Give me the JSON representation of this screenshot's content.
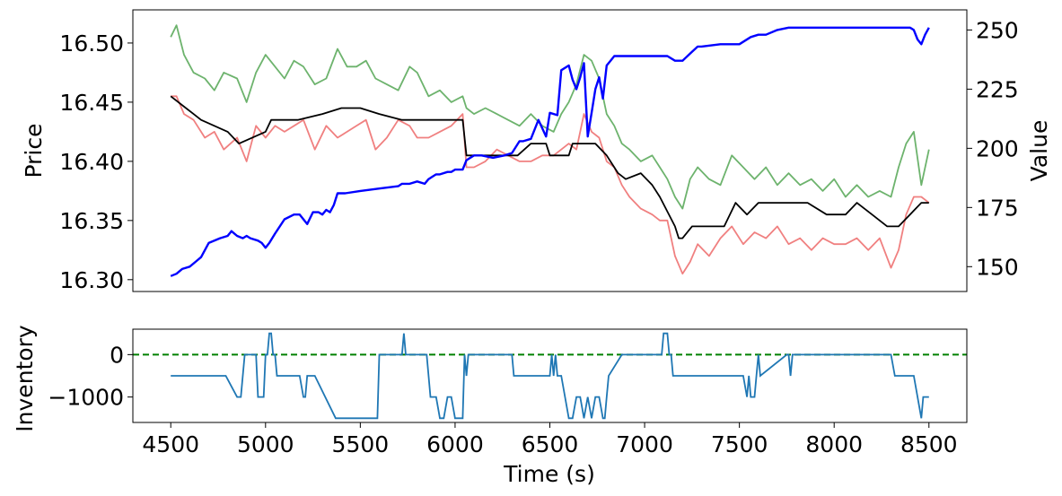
{
  "chart_data": [
    {
      "type": "line",
      "title": "",
      "xlabel": "",
      "ylabel": "Price",
      "y2label": "Value",
      "xlim": [
        4300,
        8700
      ],
      "ylim": [
        16.29,
        16.528
      ],
      "y2lim": [
        139.5,
        258.5
      ],
      "yticks": [
        16.3,
        16.35,
        16.4,
        16.45,
        16.5
      ],
      "y2ticks": [
        150,
        175,
        200,
        225,
        250
      ],
      "grid": false,
      "legend": "none",
      "series": [
        {
          "color": "#6db36d",
          "axis": "left",
          "role": "ask price",
          "x": [
            4500,
            4530,
            4570,
            4620,
            4680,
            4730,
            4780,
            4850,
            4900,
            4950,
            5000,
            5050,
            5100,
            5150,
            5200,
            5260,
            5320,
            5380,
            5430,
            5480,
            5530,
            5580,
            5640,
            5700,
            5760,
            5800,
            5860,
            5920,
            5980,
            6040,
            6060,
            6100,
            6160,
            6220,
            6280,
            6340,
            6400,
            6460,
            6520,
            6560,
            6600,
            6640,
            6680,
            6720,
            6760,
            6800,
            6840,
            6880,
            6920,
            6980,
            7040,
            7080,
            7120,
            7160,
            7200,
            7240,
            7280,
            7340,
            7400,
            7460,
            7520,
            7580,
            7640,
            7700,
            7760,
            7820,
            7880,
            7940,
            8000,
            8060,
            8120,
            8180,
            8240,
            8300,
            8340,
            8380,
            8420,
            8460,
            8500
          ],
          "values": [
            16.505,
            16.515,
            16.49,
            16.475,
            16.47,
            16.46,
            16.475,
            16.47,
            16.45,
            16.475,
            16.49,
            16.48,
            16.47,
            16.485,
            16.48,
            16.465,
            16.47,
            16.495,
            16.48,
            16.48,
            16.485,
            16.47,
            16.465,
            16.46,
            16.48,
            16.475,
            16.455,
            16.46,
            16.45,
            16.455,
            16.445,
            16.44,
            16.445,
            16.44,
            16.435,
            16.43,
            16.44,
            16.43,
            16.425,
            16.44,
            16.45,
            16.465,
            16.49,
            16.485,
            16.47,
            16.44,
            16.43,
            16.415,
            16.41,
            16.4,
            16.405,
            16.395,
            16.385,
            16.37,
            16.36,
            16.385,
            16.395,
            16.385,
            16.38,
            16.405,
            16.395,
            16.385,
            16.395,
            16.38,
            16.39,
            16.38,
            16.385,
            16.375,
            16.385,
            16.37,
            16.38,
            16.37,
            16.375,
            16.37,
            16.395,
            16.415,
            16.425,
            16.38,
            16.41
          ]
        },
        {
          "color": "#f08080",
          "axis": "left",
          "role": "bid price",
          "x": [
            4500,
            4530,
            4570,
            4620,
            4680,
            4730,
            4780,
            4850,
            4900,
            4950,
            5000,
            5050,
            5100,
            5150,
            5200,
            5260,
            5320,
            5380,
            5430,
            5480,
            5530,
            5580,
            5640,
            5700,
            5760,
            5800,
            5860,
            5920,
            5980,
            6040,
            6060,
            6100,
            6160,
            6220,
            6280,
            6340,
            6400,
            6460,
            6520,
            6560,
            6600,
            6640,
            6680,
            6720,
            6760,
            6800,
            6840,
            6880,
            6920,
            6980,
            7040,
            7080,
            7120,
            7160,
            7200,
            7240,
            7280,
            7340,
            7400,
            7460,
            7520,
            7580,
            7640,
            7700,
            7760,
            7820,
            7880,
            7940,
            8000,
            8060,
            8120,
            8180,
            8240,
            8300,
            8340,
            8380,
            8420,
            8460,
            8500
          ],
          "values": [
            16.455,
            16.455,
            16.44,
            16.435,
            16.42,
            16.425,
            16.41,
            16.42,
            16.4,
            16.43,
            16.42,
            16.43,
            16.425,
            16.43,
            16.435,
            16.41,
            16.43,
            16.42,
            16.425,
            16.43,
            16.435,
            16.41,
            16.42,
            16.435,
            16.43,
            16.42,
            16.42,
            16.425,
            16.43,
            16.44,
            16.395,
            16.395,
            16.4,
            16.41,
            16.405,
            16.4,
            16.4,
            16.405,
            16.405,
            16.41,
            16.415,
            16.41,
            16.44,
            16.425,
            16.42,
            16.4,
            16.395,
            16.38,
            16.37,
            16.36,
            16.355,
            16.35,
            16.35,
            16.32,
            16.305,
            16.315,
            16.33,
            16.32,
            16.335,
            16.345,
            16.33,
            16.34,
            16.335,
            16.345,
            16.33,
            16.335,
            16.325,
            16.335,
            16.33,
            16.33,
            16.335,
            16.325,
            16.335,
            16.31,
            16.325,
            16.355,
            16.37,
            16.37,
            16.365
          ]
        },
        {
          "color": "#000000",
          "axis": "left",
          "role": "mid price",
          "x": [
            4500,
            4580,
            4620,
            4660,
            4800,
            4860,
            5000,
            5030,
            5100,
            5170,
            5300,
            5400,
            5500,
            5600,
            5720,
            5780,
            5900,
            6040,
            6060,
            6330,
            6400,
            6480,
            6500,
            6600,
            6620,
            6660,
            6740,
            6800,
            6860,
            6900,
            6980,
            7040,
            7080,
            7160,
            7180,
            7200,
            7250,
            7300,
            7360,
            7420,
            7480,
            7540,
            7600,
            7700,
            7780,
            7860,
            7960,
            8060,
            8120,
            8200,
            8280,
            8340,
            8400,
            8460,
            8500
          ],
          "values": [
            16.455,
            16.445,
            16.44,
            16.435,
            16.425,
            16.415,
            16.425,
            16.435,
            16.435,
            16.435,
            16.44,
            16.445,
            16.445,
            16.44,
            16.435,
            16.435,
            16.435,
            16.435,
            16.405,
            16.405,
            16.415,
            16.415,
            16.405,
            16.405,
            16.415,
            16.415,
            16.415,
            16.405,
            16.39,
            16.385,
            16.39,
            16.38,
            16.37,
            16.345,
            16.335,
            16.335,
            16.345,
            16.345,
            16.345,
            16.345,
            16.365,
            16.355,
            16.365,
            16.365,
            16.365,
            16.365,
            16.355,
            16.355,
            16.365,
            16.355,
            16.345,
            16.345,
            16.355,
            16.365,
            16.365
          ]
        },
        {
          "color": "#0000ff",
          "axis": "right",
          "role": "value",
          "x": [
            4500,
            4530,
            4560,
            4600,
            4630,
            4660,
            4700,
            4760,
            4800,
            4820,
            4850,
            4880,
            4900,
            4920,
            4960,
            4980,
            5000,
            5020,
            5050,
            5100,
            5150,
            5180,
            5220,
            5250,
            5280,
            5300,
            5320,
            5340,
            5360,
            5380,
            5420,
            5500,
            5600,
            5700,
            5720,
            5760,
            5800,
            5840,
            5860,
            5880,
            5900,
            5920,
            5960,
            5980,
            6000,
            6040,
            6060,
            6100,
            6140,
            6200,
            6260,
            6300,
            6340,
            6360,
            6400,
            6440,
            6480,
            6500,
            6540,
            6560,
            6600,
            6620,
            6640,
            6660,
            6680,
            6700,
            6720,
            6740,
            6760,
            6780,
            6800,
            6820,
            6840,
            6880,
            6920,
            7000,
            7080,
            7120,
            7160,
            7200,
            7240,
            7280,
            7300,
            7400,
            7500,
            7560,
            7600,
            7640,
            7700,
            7760,
            7800,
            7900,
            8000,
            8100,
            8200,
            8300,
            8340,
            8380,
            8400,
            8420,
            8440,
            8460,
            8480,
            8500
          ],
          "values": [
            146,
            147,
            149,
            150,
            152,
            154,
            160,
            162,
            163,
            165,
            163,
            162,
            163,
            162,
            161,
            160,
            158,
            160,
            164,
            170,
            172,
            172,
            168,
            173,
            173,
            172,
            174,
            173,
            176,
            181,
            181,
            182,
            183,
            184,
            185,
            185,
            186,
            185,
            187,
            188,
            189,
            189,
            190,
            190,
            191,
            191,
            195,
            197,
            197,
            196,
            197,
            198,
            203,
            203,
            204,
            212,
            205,
            215,
            214,
            233,
            235,
            229,
            225,
            230,
            236,
            205,
            215,
            225,
            230,
            221,
            235,
            237,
            239,
            239,
            239,
            239,
            239,
            239,
            237,
            237,
            240,
            243,
            243,
            244,
            244,
            247,
            248,
            248,
            250,
            251,
            251,
            251,
            251,
            251,
            251,
            251,
            251,
            251,
            251,
            250,
            246,
            244,
            248,
            251
          ]
        }
      ]
    },
    {
      "type": "line",
      "title": "",
      "xlabel": "Time (s)",
      "ylabel": "Inventory",
      "xlim": [
        4300,
        8700
      ],
      "ylim": [
        -1600,
        600
      ],
      "xticks": [
        4500,
        5000,
        5500,
        6000,
        6500,
        7000,
        7500,
        8000,
        8500
      ],
      "yticks": [
        0,
        -1000
      ],
      "ytick_labels": [
        "0",
        "−1000"
      ],
      "grid": false,
      "legend": "none",
      "reference_line": {
        "y": 0,
        "color": "#008000",
        "style": "dashed"
      },
      "series": [
        {
          "color": "#1f77b4",
          "x": [
            4500,
            4790,
            4850,
            4870,
            4890,
            4950,
            4960,
            4990,
            5000,
            5010,
            5020,
            5030,
            5040,
            5050,
            5060,
            5180,
            5200,
            5210,
            5220,
            5240,
            5260,
            5370,
            5380,
            5590,
            5600,
            5720,
            5730,
            5740,
            5760,
            5850,
            5870,
            5900,
            5920,
            5940,
            5960,
            5980,
            6000,
            6040,
            6050,
            6060,
            6070,
            6300,
            6310,
            6500,
            6510,
            6520,
            6530,
            6540,
            6560,
            6580,
            6600,
            6620,
            6640,
            6660,
            6680,
            6700,
            6720,
            6740,
            6760,
            6780,
            6790,
            6800,
            6810,
            6880,
            7090,
            7100,
            7110,
            7120,
            7130,
            7140,
            7150,
            7160,
            7200,
            7230,
            7240,
            7250,
            7260,
            7480,
            7520,
            7540,
            7550,
            7560,
            7580,
            7590,
            7600,
            7610,
            7750,
            7760,
            7770,
            7780,
            7790,
            8300,
            8320,
            8420,
            8460,
            8470,
            8480,
            8500
          ],
          "values": [
            -500,
            -500,
            -1000,
            -1000,
            0,
            0,
            -1000,
            -1000,
            0,
            0,
            500,
            500,
            0,
            0,
            -500,
            -500,
            -1000,
            -1000,
            -500,
            -500,
            -500,
            -1500,
            -1500,
            -1500,
            0,
            0,
            500,
            0,
            0,
            0,
            -1000,
            -1000,
            -1500,
            -1500,
            -1000,
            -1000,
            -1500,
            -1500,
            0,
            -500,
            0,
            0,
            -500,
            -500,
            0,
            -500,
            0,
            -500,
            -500,
            -1000,
            -1500,
            -1500,
            -1000,
            -1000,
            -1500,
            -1000,
            -1500,
            -1000,
            -1000,
            -1500,
            -1500,
            -1000,
            -500,
            0,
            0,
            500,
            500,
            500,
            0,
            0,
            -500,
            -500,
            -500,
            -500,
            -500,
            -500,
            -500,
            -500,
            -500,
            -1000,
            -500,
            -1000,
            -1000,
            -500,
            0,
            -500,
            0,
            0,
            -500,
            0,
            0,
            0,
            -500,
            -500,
            -1500,
            -1000,
            -1000,
            -1000
          ]
        }
      ]
    }
  ]
}
